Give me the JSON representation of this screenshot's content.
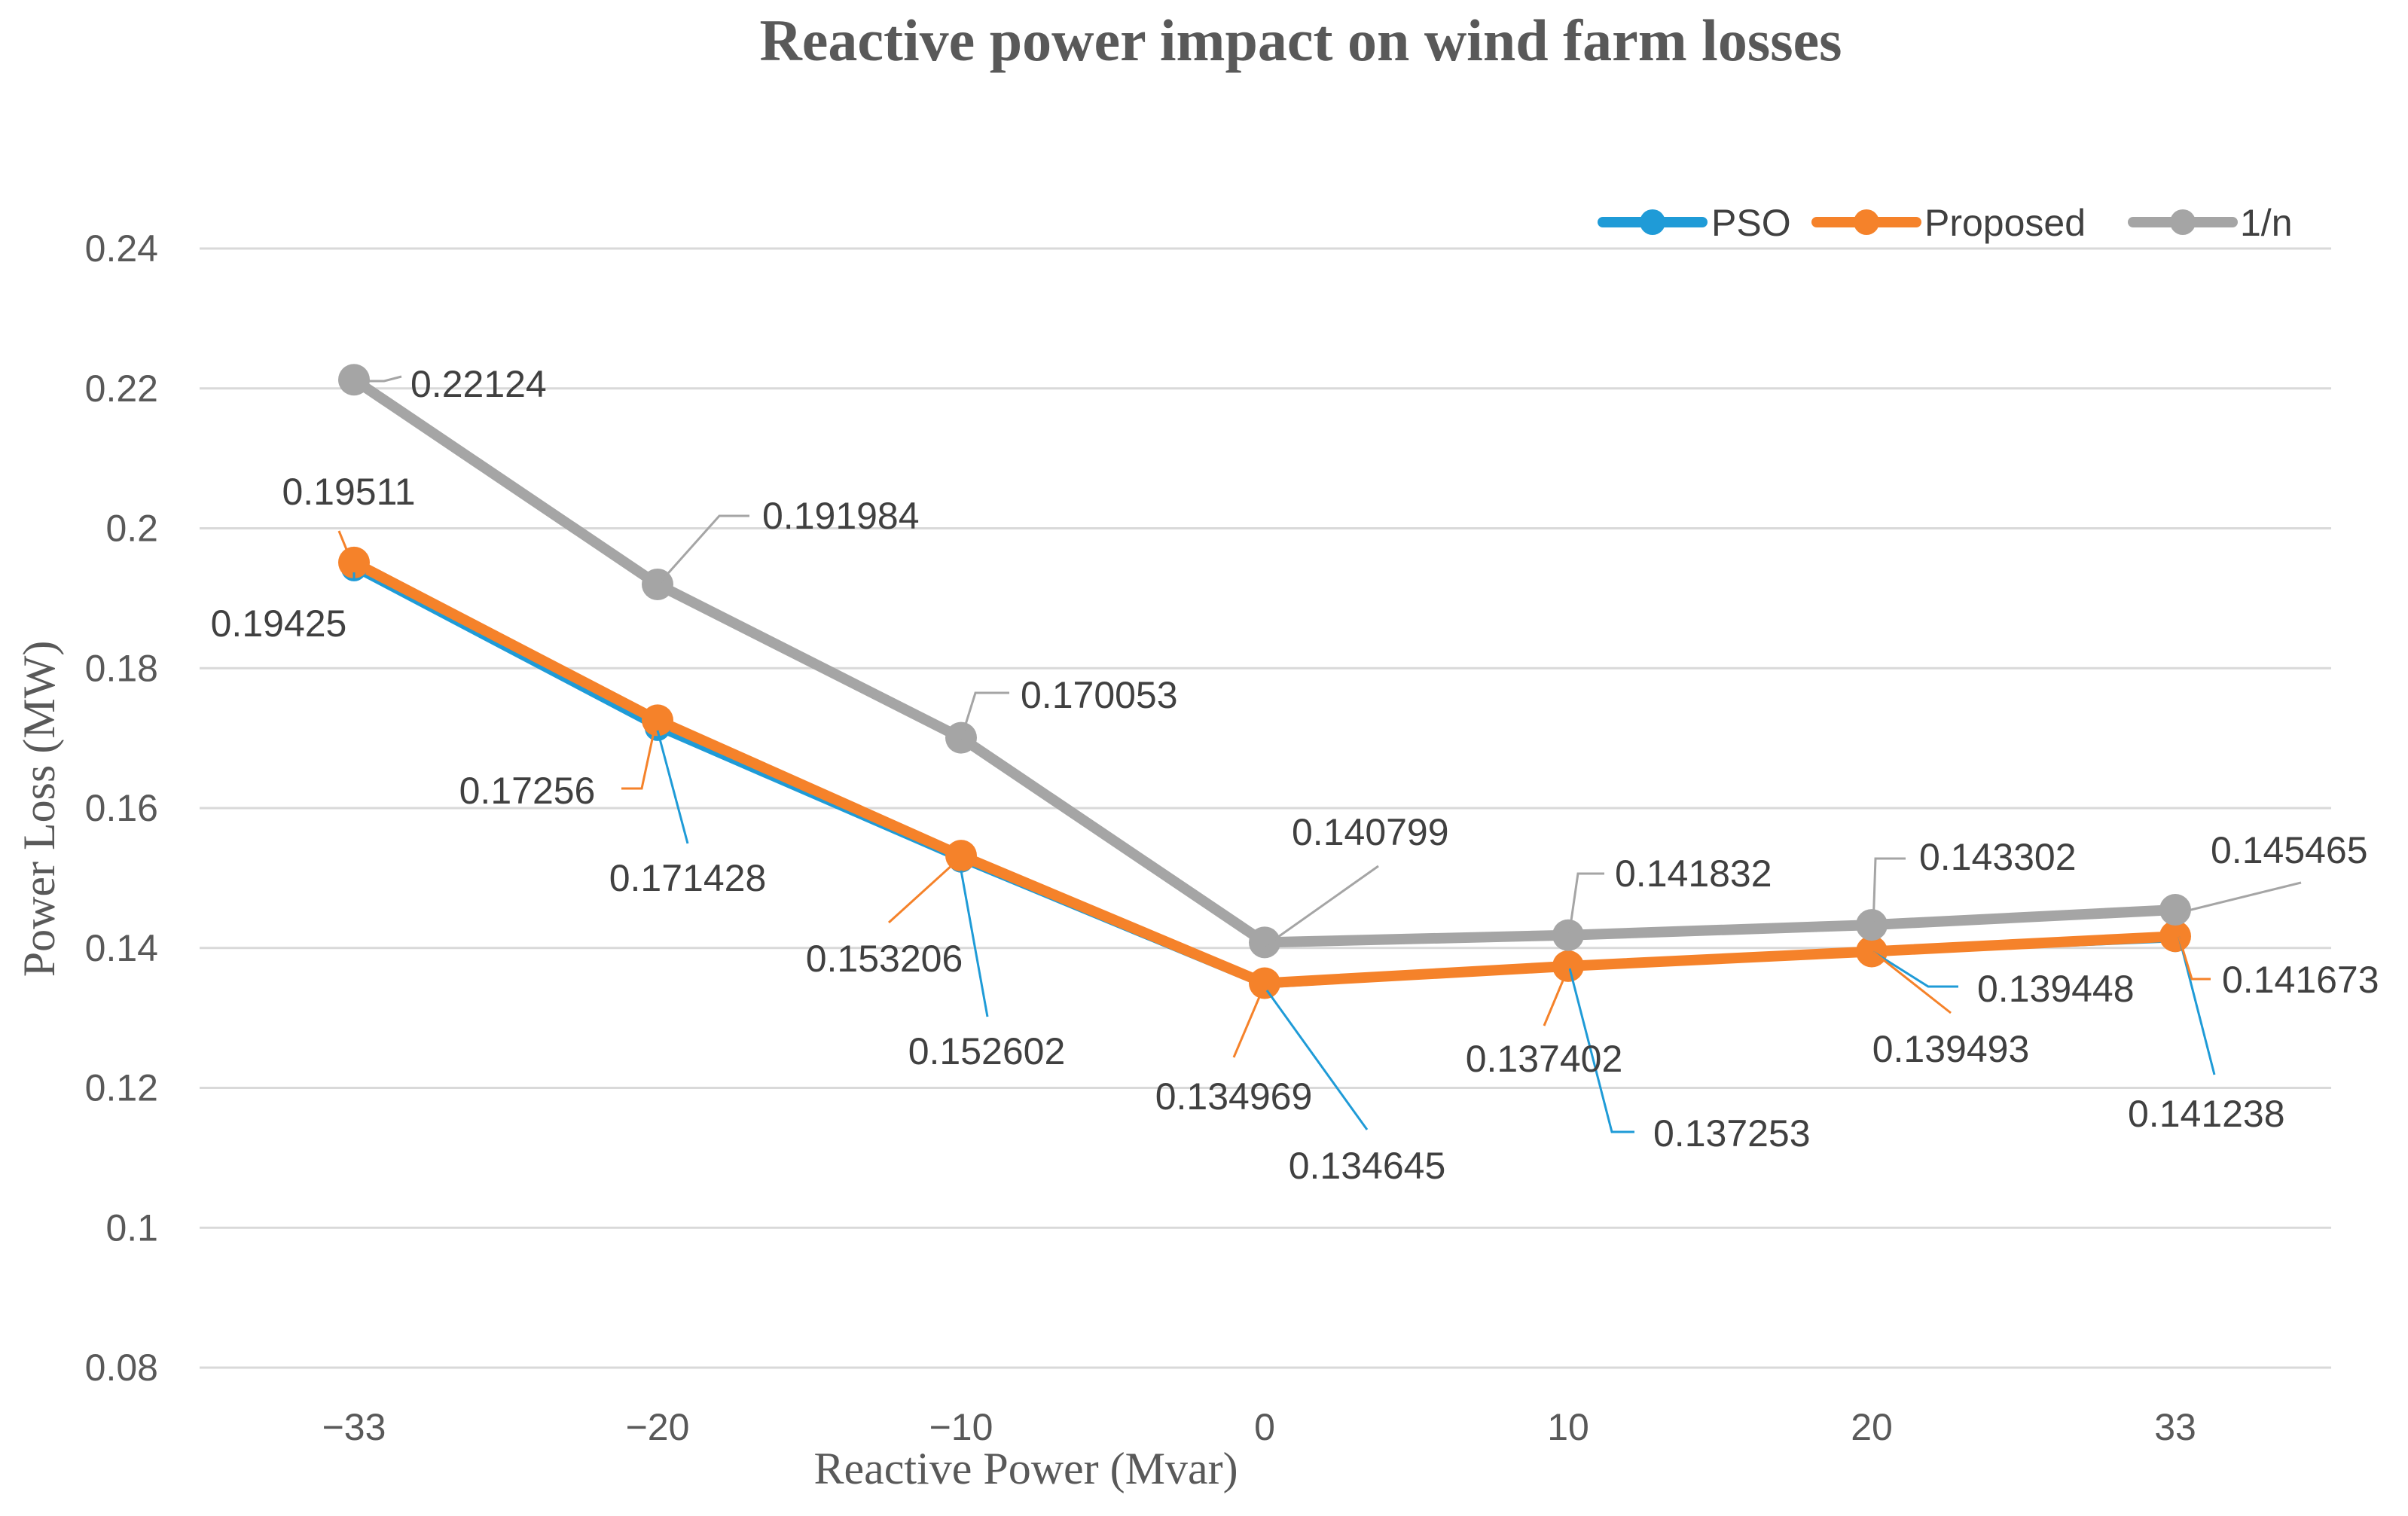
{
  "chart_data": {
    "type": "line",
    "title": "Reactive power impact on wind farm losses",
    "xlabel": "Reactive Power (Mvar)",
    "ylabel": "Power Loss (MW)",
    "categories": [
      "−33",
      "−20",
      "−10",
      "0",
      "10",
      "20",
      "33"
    ],
    "ylim": [
      0.08,
      0.24
    ],
    "yticks": [
      0.08,
      0.1,
      0.12,
      0.14,
      0.16,
      0.18,
      0.2,
      0.22,
      0.24
    ],
    "ytick_labels": [
      "0.08",
      "0.1",
      "0.12",
      "0.14",
      "0.16",
      "0.18",
      "0.2",
      "0.22",
      "0.24"
    ],
    "grid": true,
    "legend_position": "top-right",
    "series": [
      {
        "name": "PSO",
        "color": "#1f9bd7",
        "values": [
          0.19425,
          0.171428,
          0.152602,
          0.134645,
          0.137253,
          0.139448,
          0.141238
        ],
        "labels": [
          "0.19425",
          "0.171428",
          "0.152602",
          "0.134645",
          "0.137253",
          "0.139448",
          "0.141238"
        ]
      },
      {
        "name": "Proposed",
        "color": "#f5822a",
        "values": [
          0.19511,
          0.17256,
          0.153206,
          0.134969,
          0.137402,
          0.139493,
          0.141673
        ],
        "labels": [
          "0.19511",
          "0.17256",
          "0.153206",
          "0.134969",
          "0.137402",
          "0.139493",
          "0.141673"
        ]
      },
      {
        "name": "1/n",
        "color": "#a5a5a5",
        "values": [
          0.22124,
          0.191984,
          0.170053,
          0.140799,
          0.141832,
          0.143302,
          0.145465
        ],
        "labels": [
          "0.22124",
          "0.191984",
          "0.170053",
          "0.140799",
          "0.141832",
          "0.143302",
          "0.145465"
        ]
      }
    ]
  }
}
